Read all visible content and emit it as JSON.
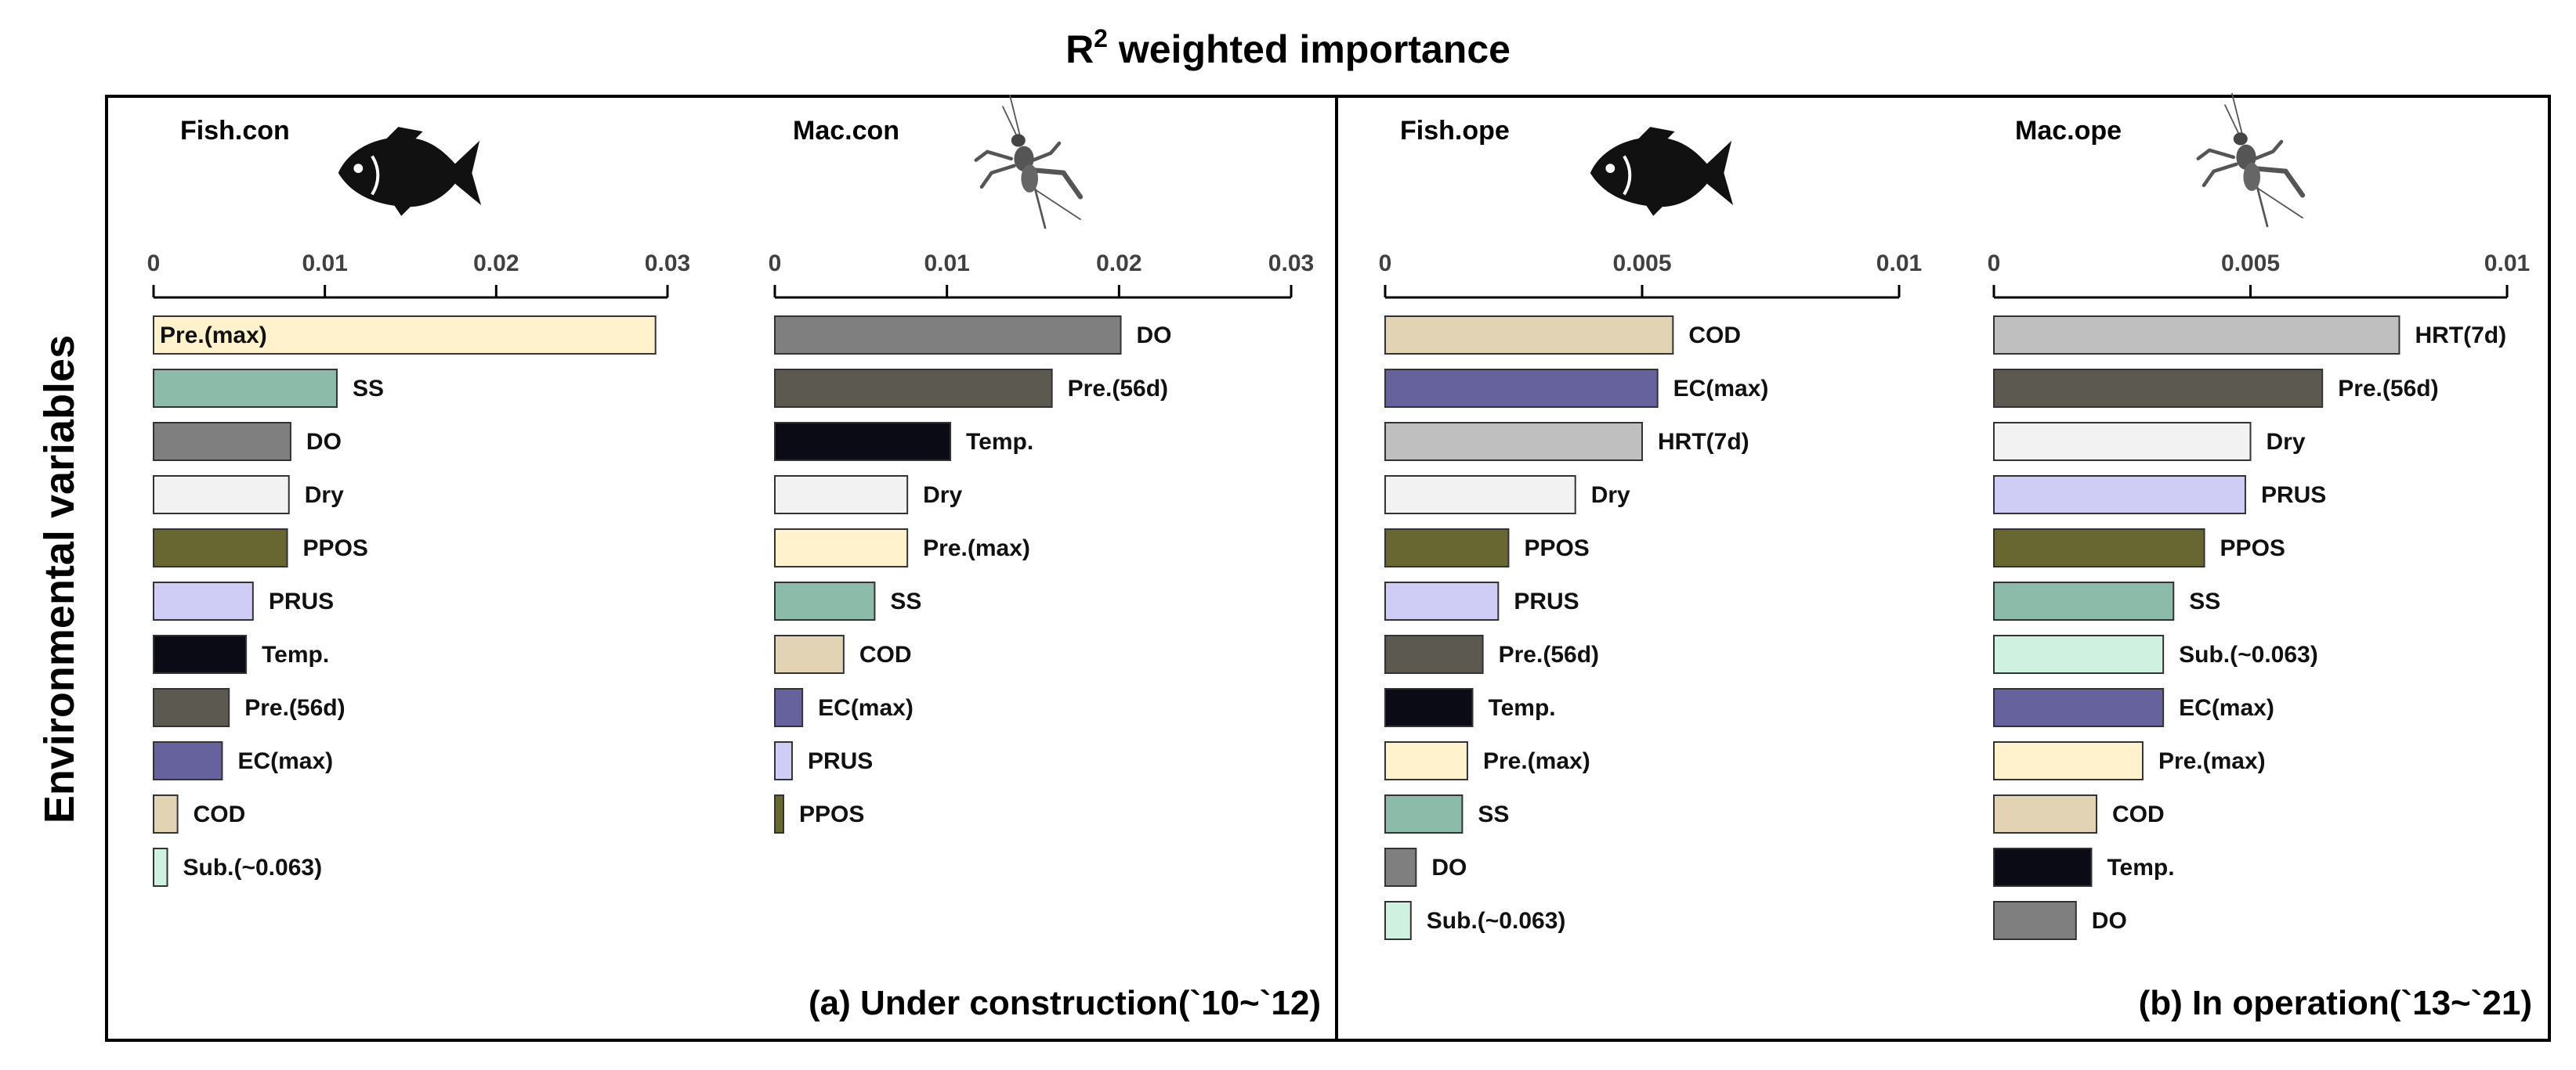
{
  "figure": {
    "title_main": "R",
    "title_sup": "2",
    "title_rest": " weighted importance",
    "ylabel": "Environmental variables"
  },
  "chart_data": [
    {
      "type": "bar",
      "orientation": "horizontal",
      "panel": "a",
      "title": "Fish.con",
      "icon": "fish-icon",
      "xlim": [
        0,
        0.03
      ],
      "ticks": [
        0,
        0.01,
        0.02,
        0.03
      ],
      "tick_labels": [
        "0",
        "0.01",
        "0.02",
        "0.03"
      ],
      "categories": [
        "Pre.(max)",
        "SS",
        "DO",
        "Dry",
        "PPOS",
        "PRUS",
        "Temp.",
        "Pre.(56d)",
        "EC(max)",
        "COD",
        "Sub.(~0.063)"
      ],
      "values": [
        0.0293,
        0.0107,
        0.008,
        0.0079,
        0.0078,
        0.0058,
        0.0054,
        0.0044,
        0.004,
        0.0014,
        0.0008
      ],
      "label_inside_first": true
    },
    {
      "type": "bar",
      "orientation": "horizontal",
      "panel": "a",
      "title": "Mac.con",
      "icon": "cricket-icon",
      "xlim": [
        0,
        0.03
      ],
      "ticks": [
        0,
        0.01,
        0.02,
        0.03
      ],
      "tick_labels": [
        "0",
        "0.01",
        "0.02",
        "0.03"
      ],
      "categories": [
        "DO",
        "Pre.(56d)",
        "Temp.",
        "Dry",
        "Pre.(max)",
        "SS",
        "COD",
        "EC(max)",
        "PRUS",
        "PPOS"
      ],
      "values": [
        0.0201,
        0.0161,
        0.0102,
        0.0077,
        0.0077,
        0.0058,
        0.004,
        0.0016,
        0.001,
        0.0005
      ],
      "label_inside_first": false
    },
    {
      "type": "bar",
      "orientation": "horizontal",
      "panel": "b",
      "title": "Fish.ope",
      "icon": "fish-icon",
      "xlim": [
        0,
        0.01
      ],
      "ticks": [
        0,
        0.005,
        0.01
      ],
      "tick_labels": [
        "0",
        "0.005",
        "0.01"
      ],
      "categories": [
        "COD",
        "EC(max)",
        "HRT(7d)",
        "Dry",
        "PPOS",
        "PRUS",
        "Pre.(56d)",
        "Temp.",
        "Pre.(max)",
        "SS",
        "DO",
        "Sub.(~0.063)"
      ],
      "values": [
        0.0056,
        0.0053,
        0.005,
        0.0037,
        0.0024,
        0.0022,
        0.0019,
        0.0017,
        0.0016,
        0.0015,
        0.0006,
        0.0005
      ],
      "label_inside_first": false
    },
    {
      "type": "bar",
      "orientation": "horizontal",
      "panel": "b",
      "title": "Mac.ope",
      "icon": "cricket-icon",
      "xlim": [
        0,
        0.01
      ],
      "ticks": [
        0,
        0.005,
        0.01
      ],
      "tick_labels": [
        "0",
        "0.005",
        "0.01"
      ],
      "categories": [
        "HRT(7d)",
        "Pre.(56d)",
        "Dry",
        "PRUS",
        "PPOS",
        "SS",
        "Sub.(~0.063)",
        "EC(max)",
        "Pre.(max)",
        "COD",
        "Temp.",
        "DO"
      ],
      "values": [
        0.0079,
        0.0064,
        0.005,
        0.0049,
        0.0041,
        0.0035,
        0.0033,
        0.0033,
        0.0029,
        0.002,
        0.0019,
        0.0016
      ],
      "label_inside_first": false
    }
  ],
  "variable_colors": {
    "Pre.(max)": "#FFF2CC",
    "SS": "#8DBBAA",
    "DO": "#7F7F7F",
    "Dry": "#F2F2F2",
    "PPOS": "#686732",
    "PRUS": "#CFCCF5",
    "Temp.": "#0A0B14",
    "Pre.(56d)": "#5C5951",
    "EC(max)": "#66629E",
    "COD": "#E2D3B4",
    "Sub.(~0.063)": "#CFF2E0",
    "HRT(7d)": "#BFBFBF"
  },
  "panels": {
    "a": {
      "label": "(a) Under construction(`10~`12)"
    },
    "b": {
      "label": "(b) In operation(`13~`21)"
    }
  }
}
